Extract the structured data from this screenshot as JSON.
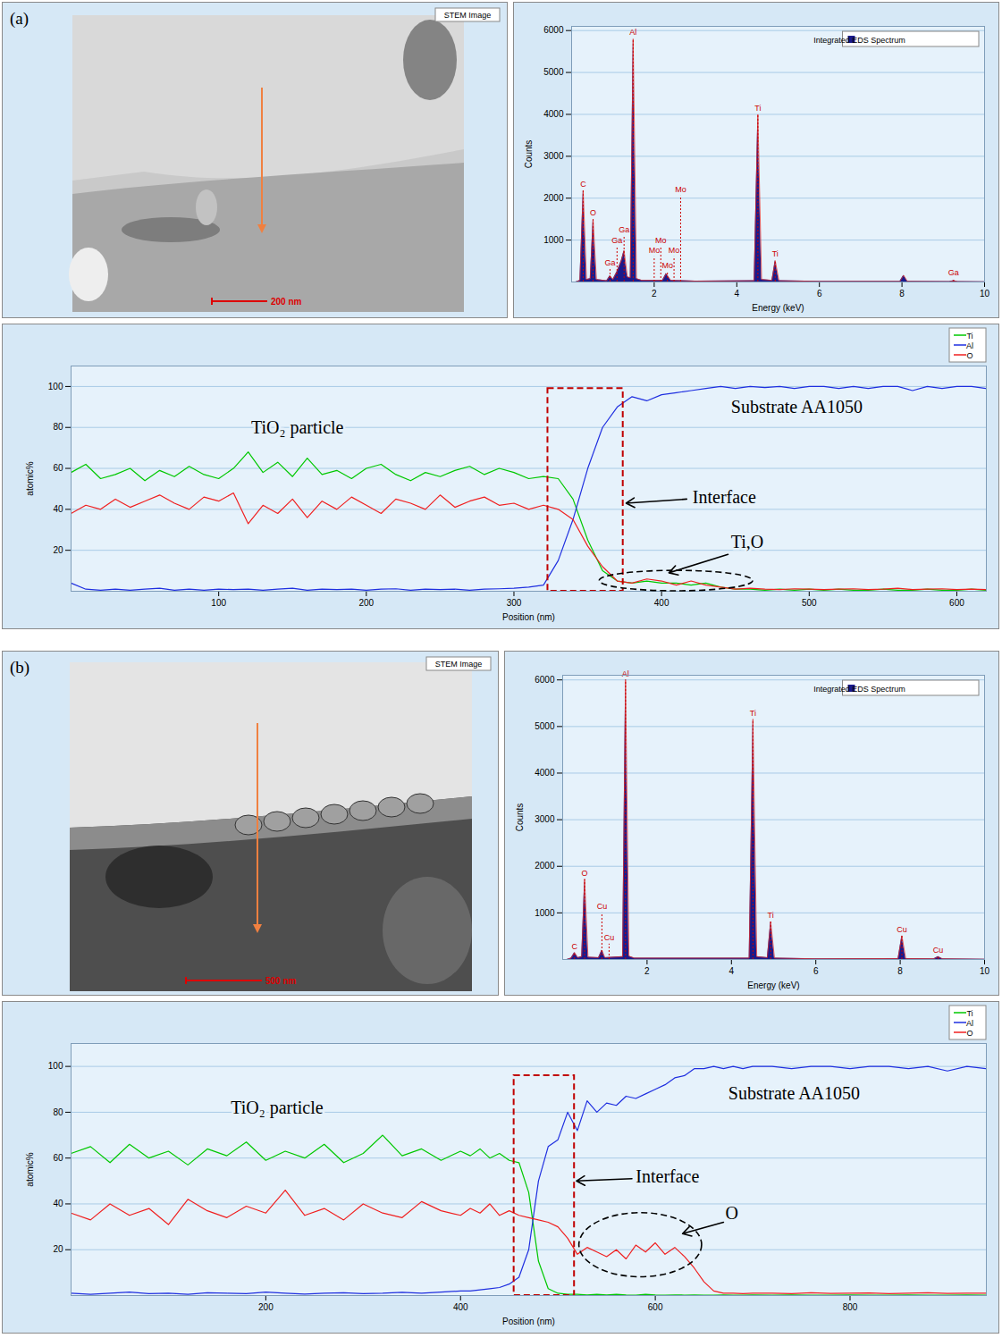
{
  "chart_data": [
    {
      "type": "image",
      "panel": "(a)",
      "badge": "STEM Image",
      "scale_bar": "200 nm"
    },
    {
      "type": "area",
      "x_label": "Energy (keV)",
      "y_label": "Counts",
      "xlim": [
        0,
        10
      ],
      "xticks": [
        2,
        4,
        6,
        8,
        10
      ],
      "ylim": [
        0,
        6100
      ],
      "yticks": [
        1000,
        2000,
        3000,
        4000,
        5000,
        6000
      ],
      "grid": true,
      "legend": "top-right",
      "x": [
        0.1,
        0.2,
        0.28,
        0.36,
        0.45,
        0.52,
        0.6,
        0.85,
        0.93,
        1.0,
        1.1,
        1.2,
        1.27,
        1.35,
        1.42,
        1.49,
        1.57,
        1.7,
        2.2,
        2.29,
        2.4,
        3.0,
        4.42,
        4.51,
        4.6,
        4.85,
        4.93,
        5.02,
        6.0,
        7.95,
        8.04,
        8.13,
        9.15,
        9.25,
        9.35,
        10
      ],
      "series": [
        {
          "name": "Integrated EDS Spectrum",
          "color": "#1a1a8c",
          "values": [
            0,
            40,
            2180,
            60,
            80,
            1500,
            60,
            30,
            150,
            60,
            250,
            500,
            750,
            120,
            100,
            5800,
            80,
            40,
            40,
            200,
            40,
            20,
            30,
            4000,
            60,
            40,
            510,
            30,
            15,
            15,
            160,
            15,
            10,
            30,
            10,
            5
          ]
        }
      ],
      "peak_markers": [
        {
          "label": "C",
          "x": 0.28,
          "y": 2180
        },
        {
          "label": "O",
          "x": 0.52,
          "y": 1500
        },
        {
          "label": "Ga",
          "x": 0.93,
          "y": 300
        },
        {
          "label": "Ga",
          "x": 1.1,
          "y": 850
        },
        {
          "label": "Ga",
          "x": 1.27,
          "y": 1100
        },
        {
          "label": "Al",
          "x": 1.49,
          "y": 5800
        },
        {
          "label": "Mo",
          "x": 2.0,
          "y": 600
        },
        {
          "label": "Mo",
          "x": 2.16,
          "y": 850
        },
        {
          "label": "Mo",
          "x": 2.32,
          "y": 250
        },
        {
          "label": "Mo",
          "x": 2.48,
          "y": 600
        },
        {
          "label": "Mo",
          "x": 2.64,
          "y": 2050
        },
        {
          "label": "Ti",
          "x": 4.51,
          "y": 4000
        },
        {
          "label": "Ti",
          "x": 4.93,
          "y": 510
        },
        {
          "label": "Ga",
          "x": 9.25,
          "y": 80
        }
      ]
    },
    {
      "type": "line",
      "x_label": "Position (nm)",
      "y_label": "atomic%",
      "xlim": [
        0,
        620
      ],
      "xticks": [
        100,
        200,
        300,
        400,
        500,
        600
      ],
      "ylim": [
        0,
        110
      ],
      "yticks": [
        20,
        40,
        60,
        80,
        100
      ],
      "grid": true,
      "legend": "top-right",
      "x": [
        0,
        10,
        20,
        30,
        40,
        50,
        60,
        70,
        80,
        90,
        100,
        110,
        120,
        130,
        140,
        150,
        160,
        170,
        180,
        190,
        200,
        210,
        220,
        230,
        240,
        250,
        260,
        270,
        280,
        290,
        300,
        310,
        320,
        330,
        340,
        350,
        360,
        370,
        380,
        390,
        400,
        410,
        420,
        430,
        440,
        450,
        460,
        470,
        480,
        490,
        500,
        510,
        520,
        530,
        540,
        550,
        560,
        570,
        580,
        590,
        600,
        610,
        620
      ],
      "series": [
        {
          "name": "Ti",
          "color": "#00c800",
          "values": [
            58,
            62,
            55,
            57,
            60,
            54,
            59,
            56,
            61,
            57,
            55,
            60,
            68,
            58,
            63,
            56,
            65,
            57,
            59,
            55,
            60,
            62,
            57,
            54,
            58,
            56,
            59,
            61,
            57,
            60,
            58,
            55,
            56,
            55,
            45,
            25,
            10,
            5,
            4,
            5,
            4,
            4,
            3,
            4,
            2,
            1,
            1,
            0.5,
            1,
            0.5,
            1,
            0.5,
            1,
            0.5,
            0.5,
            1,
            0.5,
            0.5,
            1,
            0.5,
            0.5,
            1,
            0.5
          ]
        },
        {
          "name": "Al",
          "color": "#1f2fe0",
          "values": [
            4,
            1,
            0.5,
            1,
            0.5,
            1,
            1.5,
            0.5,
            1,
            0.5,
            1,
            0.8,
            1,
            0.5,
            1,
            1.5,
            0.5,
            1,
            0.8,
            1,
            0.5,
            1,
            1.2,
            0.5,
            1,
            0.8,
            1,
            0.5,
            1,
            1.2,
            1.5,
            2,
            3,
            15,
            35,
            60,
            80,
            90,
            95,
            93,
            96,
            97,
            98,
            99,
            100,
            99,
            100,
            99.5,
            100,
            99,
            100,
            100,
            99,
            100,
            99,
            100,
            100,
            98,
            100,
            99,
            100,
            100,
            99
          ]
        },
        {
          "name": "O",
          "color": "#f02020",
          "values": [
            38,
            42,
            40,
            45,
            41,
            44,
            47,
            43,
            40,
            46,
            44,
            48,
            33,
            42,
            38,
            45,
            36,
            44,
            40,
            46,
            42,
            38,
            45,
            43,
            40,
            47,
            41,
            44,
            46,
            42,
            43,
            40,
            42,
            40,
            35,
            22,
            12,
            5,
            4,
            6,
            5,
            3,
            5,
            3,
            2,
            1,
            1.5,
            1,
            0.8,
            1.2,
            1,
            0.8,
            1,
            1.2,
            0.8,
            1,
            1.5,
            0.8,
            1,
            1.2,
            0.8,
            1,
            0.8
          ]
        }
      ],
      "annotations": [
        {
          "text": "TiO₂ particle",
          "x": 122,
          "y": 80
        },
        {
          "text": "Substrate AA1050",
          "x": 447,
          "y": 90
        },
        {
          "text": "Interface",
          "x": 421,
          "y": 46,
          "arrow_from": [
            417,
            45
          ],
          "arrow_to": [
            376,
            43
          ]
        },
        {
          "text": "Ti,O",
          "x": 447,
          "y": 24,
          "arrow_from": [
            445,
            18
          ],
          "arrow_to": [
            405,
            9
          ]
        }
      ],
      "interface_box": {
        "x1": 323,
        "x2": 374,
        "y1": 0,
        "y2": 99
      },
      "ellipse": {
        "x1": 358,
        "x2": 462,
        "y1": 0,
        "y2": 10
      }
    },
    {
      "type": "image",
      "panel": "(b)",
      "badge": "STEM Image",
      "scale_bar": "500 nm"
    },
    {
      "type": "area",
      "x_label": "Energy (keV)",
      "y_label": "Counts",
      "xlim": [
        0,
        10
      ],
      "xticks": [
        2,
        4,
        6,
        8,
        10
      ],
      "ylim": [
        0,
        6100
      ],
      "yticks": [
        1000,
        2000,
        3000,
        4000,
        5000,
        6000
      ],
      "grid": true,
      "legend": "top-right",
      "x": [
        0.1,
        0.2,
        0.28,
        0.36,
        0.45,
        0.52,
        0.6,
        0.85,
        0.93,
        1.0,
        1.42,
        1.49,
        1.57,
        1.7,
        4.42,
        4.51,
        4.6,
        4.85,
        4.93,
        5.02,
        6.0,
        7.95,
        8.04,
        8.13,
        8.8,
        8.9,
        9.0,
        10
      ],
      "series": [
        {
          "name": "Integrated EDS Spectrum",
          "color": "#1a1a8c",
          "values": [
            0,
            30,
            150,
            40,
            60,
            1720,
            50,
            40,
            200,
            40,
            60,
            6000,
            70,
            30,
            30,
            5150,
            60,
            40,
            810,
            30,
            15,
            20,
            510,
            20,
            15,
            60,
            15,
            5
          ]
        }
      ],
      "peak_markers": [
        {
          "label": "C",
          "x": 0.28,
          "y": 150
        },
        {
          "label": "O",
          "x": 0.52,
          "y": 1720
        },
        {
          "label": "Cu",
          "x": 0.93,
          "y": 1000
        },
        {
          "label": "Cu",
          "x": 1.1,
          "y": 330
        },
        {
          "label": "Al",
          "x": 1.49,
          "y": 6000
        },
        {
          "label": "Ti",
          "x": 4.51,
          "y": 5150
        },
        {
          "label": "Ti",
          "x": 4.93,
          "y": 810
        },
        {
          "label": "Cu",
          "x": 8.04,
          "y": 510
        },
        {
          "label": "Cu",
          "x": 8.9,
          "y": 60
        }
      ]
    },
    {
      "type": "line",
      "x_label": "Position (nm)",
      "y_label": "atomic%",
      "xlim": [
        0,
        940
      ],
      "xticks": [
        200,
        400,
        600,
        800
      ],
      "ylim": [
        0,
        110
      ],
      "yticks": [
        20,
        40,
        60,
        80,
        100
      ],
      "grid": true,
      "legend": "top-right",
      "x": [
        0,
        20,
        40,
        60,
        80,
        100,
        120,
        140,
        160,
        180,
        200,
        220,
        240,
        260,
        280,
        300,
        320,
        340,
        360,
        380,
        400,
        410,
        420,
        430,
        440,
        450,
        460,
        470,
        480,
        490,
        500,
        510,
        520,
        530,
        540,
        550,
        560,
        570,
        580,
        590,
        600,
        610,
        620,
        630,
        640,
        650,
        660,
        670,
        680,
        690,
        700,
        720,
        740,
        760,
        780,
        800,
        820,
        840,
        860,
        880,
        900,
        920,
        940
      ],
      "series": [
        {
          "name": "Ti",
          "color": "#00c800",
          "values": [
            62,
            65,
            58,
            66,
            60,
            63,
            57,
            64,
            61,
            67,
            59,
            63,
            60,
            66,
            58,
            62,
            70,
            61,
            64,
            59,
            63,
            61,
            64,
            60,
            62,
            59,
            58,
            45,
            15,
            3,
            1,
            0.5,
            0.5,
            0.3,
            0.5,
            0.3,
            0.5,
            0.3,
            0.2,
            0.5,
            0.3,
            0.2,
            0.3,
            0.2,
            0.3,
            0.2,
            0.2,
            0.3,
            0.2,
            0.2,
            0.3,
            0.2,
            0.3,
            0.2,
            0.2,
            0.3,
            0.2,
            0.2,
            0.3,
            0.2,
            0.2,
            0.3,
            0.2
          ]
        },
        {
          "name": "Al",
          "color": "#1f2fe0",
          "values": [
            1,
            0.5,
            1,
            1.5,
            0.8,
            1,
            0.5,
            1.2,
            1,
            0.8,
            1.5,
            1,
            0.6,
            1,
            1.2,
            0.8,
            1,
            1.4,
            1,
            1.5,
            2,
            2,
            2.5,
            3,
            3.5,
            5,
            8,
            20,
            50,
            65,
            68,
            80,
            72,
            85,
            80,
            84,
            83,
            87,
            86,
            88,
            90,
            92,
            95,
            96,
            99,
            99,
            100,
            99,
            100,
            99,
            100,
            100,
            99,
            100,
            100,
            99,
            100,
            100,
            99,
            100,
            98,
            100,
            99
          ]
        },
        {
          "name": "O",
          "color": "#f02020",
          "values": [
            36,
            33,
            40,
            35,
            38,
            31,
            42,
            37,
            34,
            39,
            36,
            46,
            35,
            38,
            33,
            40,
            36,
            34,
            41,
            37,
            35,
            38,
            36,
            40,
            35,
            37,
            35,
            34,
            33,
            32,
            30,
            25,
            18,
            21,
            19,
            17,
            20,
            16,
            22,
            19,
            23,
            18,
            21,
            17,
            12,
            6,
            2,
            1,
            1,
            0.8,
            1,
            1,
            0.8,
            1.2,
            0.9,
            1,
            1.1,
            0.8,
            1,
            1.2,
            0.9,
            1,
            1
          ]
        }
      ],
      "annotations": [
        {
          "text": "TiO₂ particle",
          "x": 164,
          "y": 82
        },
        {
          "text": "Substrate AA1050",
          "x": 675,
          "y": 88
        },
        {
          "text": "Interface",
          "x": 580,
          "y": 52,
          "arrow_from": [
            576,
            51
          ],
          "arrow_to": [
            519,
            50
          ]
        },
        {
          "text": "O",
          "x": 672,
          "y": 36,
          "arrow_from": [
            670,
            32
          ],
          "arrow_to": [
            628,
            27
          ]
        }
      ],
      "interface_box": {
        "x1": 455,
        "x2": 517,
        "y1": 0,
        "y2": 96
      },
      "ellipse": {
        "x1": 522,
        "x2": 648,
        "y1": 8,
        "y2": 36
      }
    }
  ]
}
